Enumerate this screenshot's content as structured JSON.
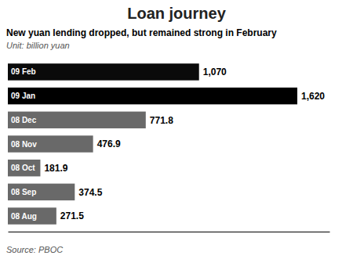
{
  "chart_data": {
    "type": "bar",
    "orientation": "horizontal",
    "title": "Loan journey",
    "subtitle": "New yuan lending dropped, but remained strong in February",
    "annotations": [
      "Unit: billion yuan",
      "Source: PBOC"
    ],
    "categories": [
      "09 Feb",
      "09 Jan",
      "08 Dec",
      "08 Nov",
      "08 Oct",
      "08 Sep",
      "08 Aug"
    ],
    "values": [
      1070,
      1620,
      771.8,
      476.9,
      181.9,
      374.5,
      271.5
    ],
    "value_labels": [
      "1,070",
      "1,620",
      "771.8",
      "476.9",
      "181.9",
      "374.5",
      "271.5"
    ],
    "colors": [
      "#0a0a0a",
      "#000000",
      "#696969",
      "#696969",
      "#696969",
      "#696969",
      "#696969"
    ],
    "xlim": [
      0,
      1800
    ],
    "tick_labels": false,
    "data_labels": true,
    "grid": false
  }
}
